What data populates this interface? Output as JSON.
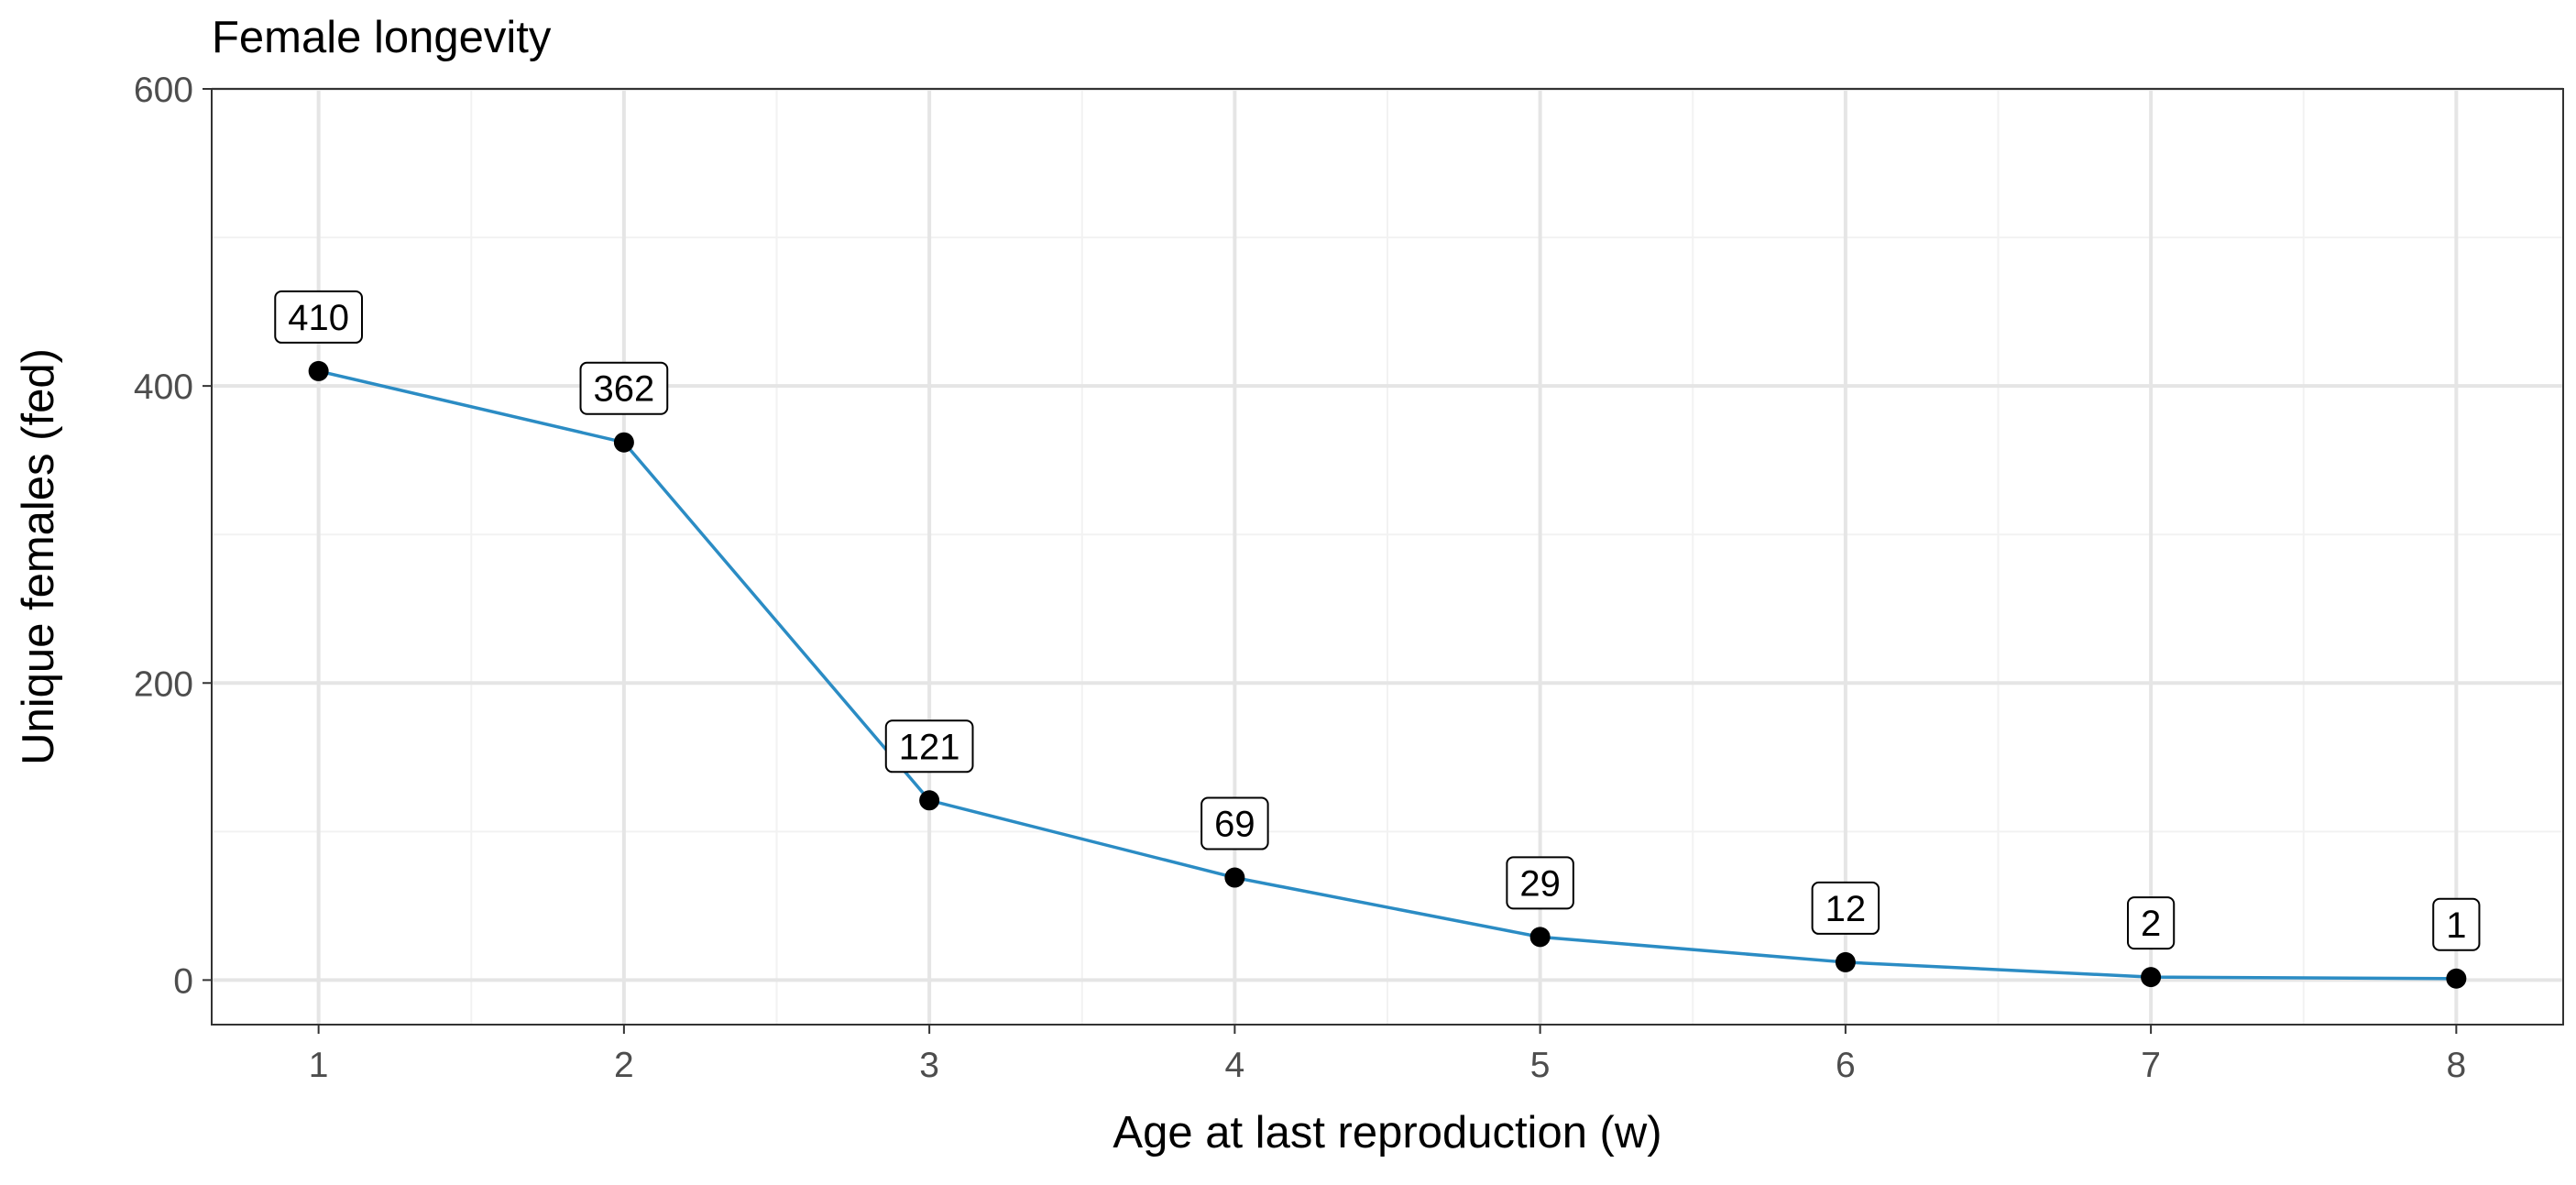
{
  "chart_data": {
    "type": "line",
    "title": "Female longevity",
    "xlabel": "Age at last reproduction (w)",
    "ylabel": "Unique females (fed)",
    "x": [
      1,
      2,
      3,
      4,
      5,
      6,
      7,
      8
    ],
    "series": [
      {
        "values": [
          410,
          362,
          121,
          69,
          29,
          12,
          2,
          1
        ],
        "data_labels": [
          "410",
          "362",
          "121",
          "69",
          "29",
          "12",
          "2",
          "1"
        ]
      }
    ],
    "xlim": [
      0.65,
      8.35
    ],
    "ylim": [
      -30,
      600
    ],
    "x_ticks": [
      1,
      2,
      3,
      4,
      5,
      6,
      7,
      8
    ],
    "x_tick_labels": [
      "1",
      "2",
      "3",
      "4",
      "5",
      "6",
      "7",
      "8"
    ],
    "y_ticks": [
      0,
      200,
      400,
      600
    ],
    "y_tick_labels": [
      "0",
      "200",
      "400",
      "600"
    ],
    "grid": true,
    "legend": "none"
  },
  "colors": {
    "line": "#2B8CC4",
    "point": "#000000",
    "grid_major": "#E5E5E5",
    "grid_minor": "#F2F2F2",
    "panel_border": "#333333",
    "axis_text": "#4D4D4D",
    "title_text": "#000000"
  }
}
